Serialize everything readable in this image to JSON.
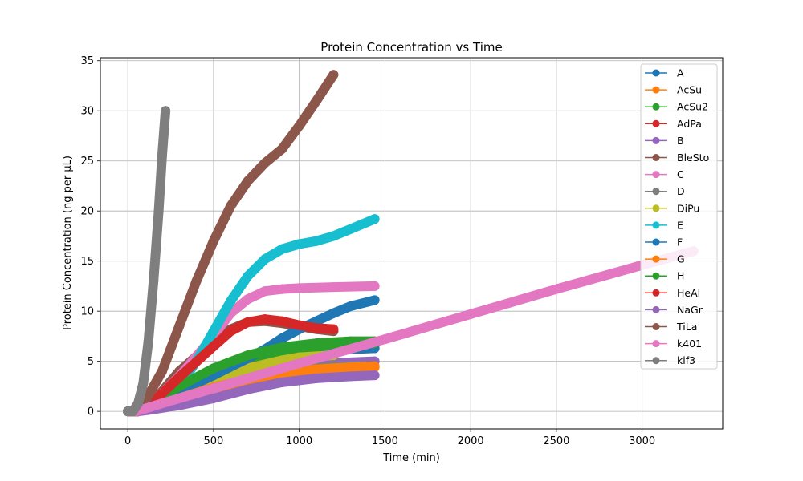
{
  "chart_data": {
    "type": "scatter",
    "title": "Protein Concentration vs Time",
    "xlabel": "Time (min)",
    "ylabel": "Protein Concentration (ng per µL)",
    "xlim": [
      -160,
      3470
    ],
    "ylim": [
      -1.75,
      35.3
    ],
    "xticks": [
      0,
      500,
      1000,
      1500,
      2000,
      2500,
      3000
    ],
    "yticks": [
      0,
      5,
      10,
      15,
      20,
      25,
      30,
      35
    ],
    "grid": true,
    "legend_position": "top-right",
    "series": [
      {
        "name": "A",
        "color": "#1f77b4",
        "points": [
          [
            0,
            0
          ],
          [
            60,
            0
          ],
          [
            150,
            0.8
          ],
          [
            300,
            2.2
          ],
          [
            500,
            3.8
          ],
          [
            700,
            5.0
          ],
          [
            900,
            5.7
          ],
          [
            1100,
            6.0
          ],
          [
            1300,
            6.2
          ],
          [
            1440,
            6.3
          ]
        ]
      },
      {
        "name": "AcSu",
        "color": "#ff7f0e",
        "points": [
          [
            0,
            0
          ],
          [
            60,
            0
          ],
          [
            150,
            0.3
          ],
          [
            300,
            1.2
          ],
          [
            500,
            2.3
          ],
          [
            700,
            3.1
          ],
          [
            900,
            3.7
          ],
          [
            1100,
            4.1
          ],
          [
            1300,
            4.3
          ],
          [
            1440,
            4.4
          ]
        ]
      },
      {
        "name": "AcSu2",
        "color": "#2ca02c",
        "points": [
          [
            0,
            0
          ],
          [
            60,
            0
          ],
          [
            150,
            0.6
          ],
          [
            300,
            2.0
          ],
          [
            500,
            3.6
          ],
          [
            700,
            4.9
          ],
          [
            900,
            5.8
          ],
          [
            1100,
            6.4
          ],
          [
            1300,
            6.7
          ],
          [
            1440,
            6.8
          ]
        ]
      },
      {
        "name": "AdPa",
        "color": "#d62728",
        "points": [
          [
            0,
            0
          ],
          [
            60,
            0
          ],
          [
            150,
            0.7
          ],
          [
            300,
            2.2
          ],
          [
            500,
            3.6
          ],
          [
            700,
            4.4
          ],
          [
            900,
            4.7
          ],
          [
            1000,
            4.7
          ],
          [
            1100,
            4.6
          ],
          [
            1200,
            4.5
          ]
        ]
      },
      {
        "name": "B",
        "color": "#9467bd",
        "points": [
          [
            0,
            0
          ],
          [
            60,
            0
          ],
          [
            150,
            0.4
          ],
          [
            300,
            1.4
          ],
          [
            500,
            2.6
          ],
          [
            700,
            3.6
          ],
          [
            900,
            4.3
          ],
          [
            1100,
            4.7
          ],
          [
            1300,
            4.9
          ],
          [
            1440,
            5.0
          ]
        ]
      },
      {
        "name": "BleSto",
        "color": "#8c564b",
        "points": [
          [
            0,
            0
          ],
          [
            60,
            0
          ],
          [
            150,
            1.0
          ],
          [
            300,
            4.0
          ],
          [
            500,
            7.0
          ],
          [
            600,
            8.2
          ],
          [
            700,
            8.9
          ],
          [
            800,
            9.0
          ],
          [
            900,
            8.8
          ],
          [
            1000,
            8.5
          ],
          [
            1100,
            8.2
          ],
          [
            1200,
            8.0
          ]
        ]
      },
      {
        "name": "C",
        "color": "#e377c2",
        "points": [
          [
            0,
            0
          ],
          [
            60,
            0
          ],
          [
            150,
            1.0
          ],
          [
            300,
            3.5
          ],
          [
            450,
            6.5
          ],
          [
            600,
            9.8
          ],
          [
            700,
            11.2
          ],
          [
            800,
            12.0
          ],
          [
            900,
            12.2
          ],
          [
            1000,
            12.3
          ],
          [
            1200,
            12.4
          ],
          [
            1440,
            12.5
          ]
        ]
      },
      {
        "name": "D",
        "color": "#7f7f7f",
        "points": [
          [
            0,
            0
          ],
          [
            60,
            0
          ],
          [
            150,
            0.6
          ],
          [
            300,
            1.8
          ],
          [
            500,
            3.0
          ],
          [
            700,
            3.8
          ],
          [
            900,
            4.2
          ],
          [
            1100,
            4.4
          ],
          [
            1300,
            4.5
          ],
          [
            1440,
            4.5
          ]
        ]
      },
      {
        "name": "DiPu",
        "color": "#bcbd22",
        "points": [
          [
            0,
            0
          ],
          [
            60,
            0
          ],
          [
            150,
            0.5
          ],
          [
            300,
            1.7
          ],
          [
            500,
            3.1
          ],
          [
            700,
            4.3
          ],
          [
            900,
            5.1
          ],
          [
            1000,
            5.4
          ],
          [
            1100,
            5.5
          ],
          [
            1200,
            5.6
          ]
        ]
      },
      {
        "name": "E",
        "color": "#17becf",
        "points": [
          [
            0,
            0
          ],
          [
            60,
            0
          ],
          [
            200,
            1.0
          ],
          [
            300,
            2.5
          ],
          [
            400,
            5.0
          ],
          [
            500,
            8.0
          ],
          [
            600,
            11.0
          ],
          [
            700,
            13.5
          ],
          [
            800,
            15.2
          ],
          [
            900,
            16.2
          ],
          [
            1000,
            16.7
          ],
          [
            1100,
            17.0
          ],
          [
            1200,
            17.5
          ],
          [
            1300,
            18.2
          ],
          [
            1440,
            19.2
          ]
        ]
      },
      {
        "name": "F",
        "color": "#1f77b4",
        "points": [
          [
            0,
            0
          ],
          [
            60,
            0
          ],
          [
            150,
            0.7
          ],
          [
            300,
            2.0
          ],
          [
            500,
            3.6
          ],
          [
            700,
            5.3
          ],
          [
            800,
            6.2
          ],
          [
            900,
            7.3
          ],
          [
            1000,
            8.2
          ],
          [
            1100,
            9.0
          ],
          [
            1200,
            9.8
          ],
          [
            1300,
            10.5
          ],
          [
            1440,
            11.1
          ]
        ]
      },
      {
        "name": "G",
        "color": "#ff7f0e",
        "points": [
          [
            0,
            0
          ],
          [
            60,
            0
          ],
          [
            150,
            0.4
          ],
          [
            300,
            1.3
          ],
          [
            500,
            2.4
          ],
          [
            700,
            3.2
          ],
          [
            900,
            3.8
          ],
          [
            1100,
            4.2
          ],
          [
            1300,
            4.4
          ],
          [
            1440,
            4.5
          ]
        ]
      },
      {
        "name": "H",
        "color": "#2ca02c",
        "points": [
          [
            0,
            0
          ],
          [
            60,
            0
          ],
          [
            150,
            0.8
          ],
          [
            300,
            2.5
          ],
          [
            500,
            4.3
          ],
          [
            700,
            5.6
          ],
          [
            900,
            6.4
          ],
          [
            1100,
            6.8
          ],
          [
            1300,
            7.0
          ],
          [
            1440,
            7.0
          ]
        ]
      },
      {
        "name": "HeAl",
        "color": "#d62728",
        "points": [
          [
            0,
            0
          ],
          [
            60,
            0
          ],
          [
            150,
            1.0
          ],
          [
            300,
            3.4
          ],
          [
            500,
            6.5
          ],
          [
            600,
            8.0
          ],
          [
            700,
            8.9
          ],
          [
            800,
            9.2
          ],
          [
            900,
            9.0
          ],
          [
            1000,
            8.6
          ],
          [
            1100,
            8.3
          ],
          [
            1200,
            8.2
          ]
        ]
      },
      {
        "name": "NaGr",
        "color": "#9467bd",
        "points": [
          [
            0,
            0
          ],
          [
            60,
            0
          ],
          [
            150,
            0.2
          ],
          [
            300,
            0.6
          ],
          [
            500,
            1.3
          ],
          [
            700,
            2.2
          ],
          [
            900,
            2.9
          ],
          [
            1100,
            3.3
          ],
          [
            1300,
            3.5
          ],
          [
            1440,
            3.6
          ]
        ]
      },
      {
        "name": "TiLa",
        "color": "#8c564b",
        "points": [
          [
            0,
            0
          ],
          [
            50,
            0
          ],
          [
            100,
            1.0
          ],
          [
            200,
            4.0
          ],
          [
            300,
            8.5
          ],
          [
            400,
            13.0
          ],
          [
            500,
            17.0
          ],
          [
            600,
            20.5
          ],
          [
            700,
            23.0
          ],
          [
            800,
            24.8
          ],
          [
            900,
            26.2
          ],
          [
            1000,
            28.5
          ],
          [
            1100,
            31.0
          ],
          [
            1200,
            33.6
          ]
        ]
      },
      {
        "name": "k401",
        "color": "#e377c2",
        "points": [
          [
            0,
            0
          ],
          [
            50,
            0
          ],
          [
            200,
            0.8
          ],
          [
            500,
            2.3
          ],
          [
            1000,
            4.8
          ],
          [
            1500,
            7.2
          ],
          [
            2000,
            9.7
          ],
          [
            2500,
            12.2
          ],
          [
            3000,
            14.6
          ],
          [
            3300,
            16.0
          ]
        ]
      },
      {
        "name": "kif3",
        "color": "#7f7f7f",
        "points": [
          [
            0,
            0
          ],
          [
            30,
            0
          ],
          [
            60,
            0.8
          ],
          [
            90,
            2.8
          ],
          [
            120,
            7.0
          ],
          [
            150,
            13.0
          ],
          [
            180,
            20.0
          ],
          [
            200,
            25.5
          ],
          [
            220,
            30.0
          ]
        ]
      }
    ]
  }
}
